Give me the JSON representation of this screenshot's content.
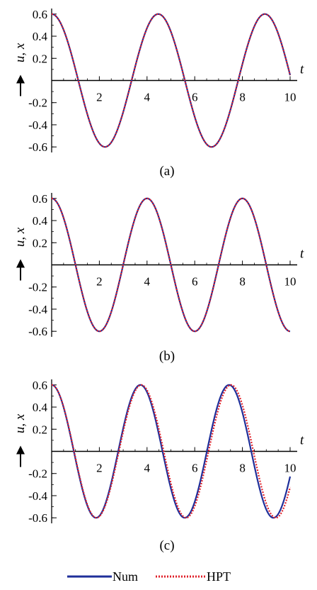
{
  "colors": {
    "num": "#1f2f9a",
    "hpt": "#e0202a",
    "axis": "#000000"
  },
  "legend": {
    "num_label": "Num",
    "hpt_label": "HPT"
  },
  "chart_data": [
    {
      "type": "line",
      "panel_label": "(a)",
      "xlabel": "t",
      "ylabel": "u, x",
      "xlim": [
        0,
        10
      ],
      "ylim": [
        -0.65,
        0.65
      ],
      "x_ticks": [
        2,
        4,
        6,
        8,
        10
      ],
      "y_ticks": [
        0.6,
        0.4,
        0.2,
        -0.2,
        -0.4,
        -0.6
      ],
      "legend_placement": "bottom-center",
      "series": [
        {
          "name": "Num",
          "style": "solid",
          "amplitude": 0.6,
          "period": 4.47,
          "t_end": 10.0,
          "points": [
            [
              0,
              0.6
            ],
            [
              1.12,
              0.0
            ],
            [
              2.24,
              -0.6
            ],
            [
              3.35,
              0.0
            ],
            [
              4.47,
              0.6
            ],
            [
              5.59,
              0.0
            ],
            [
              6.71,
              -0.6
            ],
            [
              7.82,
              0.0
            ],
            [
              8.94,
              0.6
            ],
            [
              10.0,
              -0.04
            ]
          ]
        },
        {
          "name": "HPT",
          "style": "dotted",
          "amplitude": 0.6,
          "period": 4.47,
          "t_end": 10.0,
          "points": [
            [
              0,
              0.6
            ],
            [
              1.12,
              0.0
            ],
            [
              2.24,
              -0.6
            ],
            [
              3.35,
              0.0
            ],
            [
              4.47,
              0.6
            ],
            [
              5.59,
              0.0
            ],
            [
              6.71,
              -0.6
            ],
            [
              7.82,
              0.0
            ],
            [
              8.94,
              0.6
            ],
            [
              10.0,
              -0.04
            ]
          ]
        }
      ]
    },
    {
      "type": "line",
      "panel_label": "(b)",
      "xlabel": "t",
      "ylabel": "u, x",
      "xlim": [
        0,
        10
      ],
      "ylim": [
        -0.65,
        0.65
      ],
      "x_ticks": [
        2,
        4,
        6,
        8,
        10
      ],
      "y_ticks": [
        0.6,
        0.4,
        0.2,
        -0.2,
        -0.4,
        -0.6
      ],
      "legend_placement": "bottom-center",
      "series": [
        {
          "name": "Num",
          "style": "solid",
          "amplitude": 0.6,
          "period": 4.0,
          "t_end": 10.0,
          "points": [
            [
              0,
              0.6
            ],
            [
              1.0,
              0.0
            ],
            [
              2.0,
              -0.6
            ],
            [
              3.0,
              0.0
            ],
            [
              4.0,
              0.6
            ],
            [
              5.0,
              0.0
            ],
            [
              6.0,
              -0.6
            ],
            [
              7.0,
              0.0
            ],
            [
              8.0,
              0.6
            ],
            [
              9.0,
              0.0
            ],
            [
              10.0,
              -0.6
            ]
          ]
        },
        {
          "name": "HPT",
          "style": "dotted",
          "amplitude": 0.6,
          "period": 4.0,
          "t_end": 10.0,
          "points": [
            [
              0,
              0.6
            ],
            [
              1.0,
              0.0
            ],
            [
              2.0,
              -0.6
            ],
            [
              3.0,
              0.0
            ],
            [
              4.0,
              0.6
            ],
            [
              5.0,
              0.0
            ],
            [
              6.0,
              -0.6
            ],
            [
              7.0,
              0.0
            ],
            [
              8.0,
              0.6
            ],
            [
              9.0,
              0.0
            ],
            [
              10.0,
              -0.6
            ]
          ]
        }
      ]
    },
    {
      "type": "line",
      "panel_label": "(c)",
      "xlabel": "t",
      "ylabel": "u, x",
      "xlim": [
        0,
        10
      ],
      "ylim": [
        -0.65,
        0.65
      ],
      "x_ticks": [
        2,
        4,
        6,
        8,
        10
      ],
      "y_ticks": [
        0.6,
        0.4,
        0.2,
        -0.2,
        -0.4,
        -0.6
      ],
      "legend_placement": "bottom-center",
      "series": [
        {
          "name": "Num",
          "style": "solid",
          "amplitude": 0.6,
          "period": 3.72,
          "t_end": 10.0,
          "points": [
            [
              0,
              0.6
            ],
            [
              0.93,
              0.0
            ],
            [
              1.86,
              -0.6
            ],
            [
              2.79,
              0.0
            ],
            [
              3.72,
              0.6
            ],
            [
              4.65,
              0.0
            ],
            [
              5.58,
              -0.6
            ],
            [
              6.51,
              0.0
            ],
            [
              7.44,
              0.6
            ],
            [
              8.37,
              0.0
            ],
            [
              9.3,
              -0.6
            ],
            [
              10.0,
              -0.2
            ]
          ]
        },
        {
          "name": "HPT",
          "style": "dotted",
          "amplitude": 0.6,
          "period": 3.76,
          "t_end": 10.0,
          "points": [
            [
              0,
              0.6
            ],
            [
              0.94,
              0.0
            ],
            [
              1.88,
              -0.6
            ],
            [
              2.82,
              0.0
            ],
            [
              3.76,
              0.6
            ],
            [
              4.7,
              0.0
            ],
            [
              5.64,
              -0.6
            ],
            [
              6.58,
              0.0
            ],
            [
              7.52,
              0.6
            ],
            [
              8.46,
              0.0
            ],
            [
              9.4,
              -0.6
            ],
            [
              10.0,
              -0.31
            ]
          ]
        }
      ]
    }
  ]
}
